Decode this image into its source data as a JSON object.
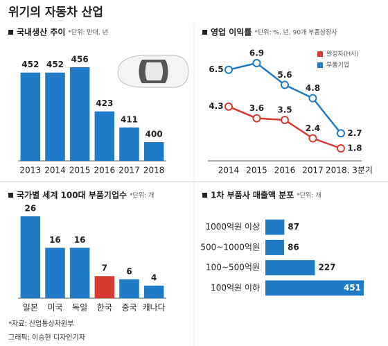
{
  "title": "위기의 자동차 산업",
  "chart_data": [
    {
      "type": "bar",
      "title": "국내생산 추이",
      "subtitle": "*단위: 만대, 년",
      "categories": [
        "2013",
        "2014",
        "2015",
        "2016",
        "2017",
        "2018"
      ],
      "values": [
        452,
        452,
        456,
        423,
        411,
        400
      ],
      "color": "#1f7bc6"
    },
    {
      "type": "line",
      "title": "영업 이익률",
      "subtitle": "*단위: %, 년, 90개 부품상장사",
      "categories": [
        "2014",
        "2015",
        "2016",
        "2017",
        "2018. 3분기"
      ],
      "series": [
        {
          "name": "완성차(H사)",
          "color": "#d63a30",
          "values": [
            4.3,
            3.6,
            3.5,
            2.4,
            1.8
          ]
        },
        {
          "name": "부품기업",
          "color": "#1f7bc6",
          "values": [
            6.5,
            6.9,
            5.6,
            4.8,
            2.7
          ]
        }
      ]
    },
    {
      "type": "bar",
      "title": "국가별 세계 100대 부품기업수",
      "subtitle": "*단위: 개",
      "categories": [
        "일본",
        "미국",
        "독일",
        "한국",
        "중국",
        "캐나다"
      ],
      "values": [
        26,
        16,
        16,
        7,
        6,
        4
      ],
      "colors": [
        "#1f7bc6",
        "#1f7bc6",
        "#1f7bc6",
        "#d63a30",
        "#1f7bc6",
        "#1f7bc6"
      ]
    },
    {
      "type": "barh",
      "title": "1차 부품사 매출액 분포",
      "subtitle": "*단위: 개",
      "categories": [
        "1000억원 이상",
        "500~1000억원",
        "100~500억원",
        "100억원 이하"
      ],
      "values": [
        87,
        86,
        227,
        451
      ],
      "color": "#1f7bc6"
    }
  ],
  "source": "*자료: 산업통상자원부",
  "credit": "그래픽: 이승현 디자인기자"
}
